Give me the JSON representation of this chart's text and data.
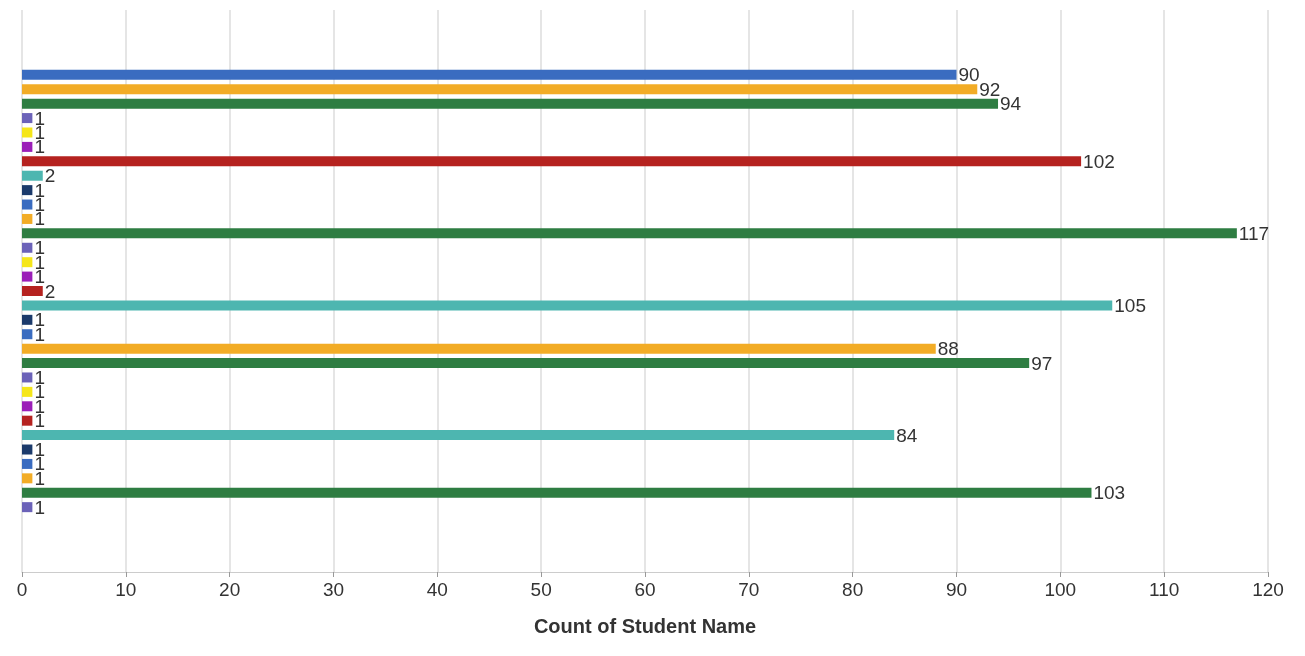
{
  "chart_data": {
    "type": "bar",
    "orientation": "horizontal",
    "xlabel": "Count of Student Name",
    "categories": [
      null,
      null,
      null,
      null,
      null,
      null,
      null,
      null,
      null,
      null,
      null,
      null,
      null,
      null,
      null,
      null,
      null,
      null,
      null,
      null,
      null,
      null,
      null,
      null,
      null,
      null,
      null,
      null,
      null,
      null,
      null
    ],
    "values": [
      90,
      92,
      94,
      1,
      1,
      1,
      102,
      2,
      1,
      1,
      1,
      117,
      1,
      1,
      1,
      2,
      105,
      1,
      1,
      88,
      97,
      1,
      1,
      1,
      1,
      84,
      1,
      1,
      1,
      103,
      1
    ],
    "colors": [
      "#3a6cc0",
      "#f2ac26",
      "#2e7d42",
      "#6b62b8",
      "#f5e61a",
      "#9b1fb8",
      "#b5221f",
      "#4db6b0",
      "#1b3a6b",
      "#3a6cc0",
      "#f2ac26",
      "#2e7d42",
      "#6b62b8",
      "#f5e61a",
      "#9b1fb8",
      "#b5221f",
      "#4db6b0",
      "#1b3a6b",
      "#3a6cc0",
      "#f2ac26",
      "#2e7d42",
      "#6b62b8",
      "#f5e61a",
      "#9b1fb8",
      "#b5221f",
      "#4db6b0",
      "#1b3a6b",
      "#3a6cc0",
      "#f2ac26",
      "#2e7d42",
      "#6b62b8"
    ],
    "xlim": [
      0,
      120
    ],
    "xticks": [
      0,
      10,
      20,
      30,
      40,
      50,
      60,
      70,
      80,
      90,
      100,
      110,
      120
    ],
    "grid": "x",
    "tick_labels": "x",
    "data_labels": true
  }
}
